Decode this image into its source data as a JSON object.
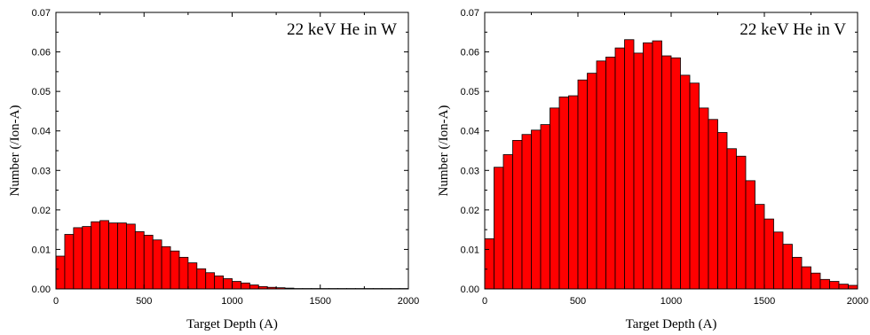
{
  "chart_data": [
    {
      "type": "bar",
      "annotation": "22 keV He in W",
      "xlabel": "Target Depth (A)",
      "ylabel": "Number (/Ion-A)",
      "xlim": [
        0,
        2000
      ],
      "ylim": [
        0,
        0.07
      ],
      "xticks": [
        "0",
        "500",
        "1000",
        "1500",
        "2000"
      ],
      "yticks": [
        "0.00",
        "0.01",
        "0.02",
        "0.03",
        "0.04",
        "0.05",
        "0.06",
        "0.07"
      ],
      "bin_width": 50,
      "x": [
        25,
        75,
        125,
        175,
        225,
        275,
        325,
        375,
        425,
        475,
        525,
        575,
        625,
        675,
        725,
        775,
        825,
        875,
        925,
        975,
        1025,
        1075,
        1125,
        1175,
        1225,
        1275,
        1325,
        1375,
        1425,
        1475,
        1525,
        1575,
        1625,
        1675,
        1725,
        1775,
        1825,
        1875,
        1925,
        1975
      ],
      "values": [
        0.0083,
        0.0138,
        0.0155,
        0.0158,
        0.017,
        0.0173,
        0.0167,
        0.0167,
        0.0164,
        0.0145,
        0.0136,
        0.0124,
        0.0107,
        0.0096,
        0.008,
        0.0066,
        0.0051,
        0.0041,
        0.0033,
        0.0026,
        0.0019,
        0.0015,
        0.001,
        0.0006,
        0.0004,
        0.0003,
        0.0002,
        0.0001,
        0.0001,
        0.0001,
        0.0001,
        0.0001,
        0.0001,
        0.0001,
        0.0001,
        0.0001,
        0.0001,
        0.0001,
        0.0001,
        0.0001
      ],
      "bar_color": "#ff0000",
      "edge_color": "#000000",
      "grid": false
    },
    {
      "type": "bar",
      "annotation": "22 keV He in V",
      "xlabel": "Target Depth (A)",
      "ylabel": "Number (/Ion-A)",
      "xlim": [
        0,
        2000
      ],
      "ylim": [
        0,
        0.07
      ],
      "xticks": [
        "0",
        "500",
        "1000",
        "1500",
        "2000"
      ],
      "yticks": [
        "0.00",
        "0.01",
        "0.02",
        "0.03",
        "0.04",
        "0.05",
        "0.06",
        "0.07"
      ],
      "bin_width": 50,
      "x": [
        25,
        75,
        125,
        175,
        225,
        275,
        325,
        375,
        425,
        475,
        525,
        575,
        625,
        675,
        725,
        775,
        825,
        875,
        925,
        975,
        1025,
        1075,
        1125,
        1175,
        1225,
        1275,
        1325,
        1375,
        1425,
        1475,
        1525,
        1575,
        1625,
        1675,
        1725,
        1775,
        1825,
        1875,
        1925,
        1975
      ],
      "values": [
        0.0127,
        0.0308,
        0.034,
        0.0376,
        0.0391,
        0.0402,
        0.0416,
        0.0458,
        0.0486,
        0.0489,
        0.0529,
        0.0546,
        0.0577,
        0.0587,
        0.061,
        0.0631,
        0.0597,
        0.0623,
        0.0628,
        0.059,
        0.0585,
        0.0541,
        0.0521,
        0.0458,
        0.0429,
        0.0396,
        0.0355,
        0.0336,
        0.0274,
        0.0214,
        0.0177,
        0.0144,
        0.0113,
        0.008,
        0.0056,
        0.004,
        0.0024,
        0.0019,
        0.0012,
        0.0009
      ],
      "bar_color": "#ff0000",
      "edge_color": "#000000",
      "grid": false
    }
  ]
}
